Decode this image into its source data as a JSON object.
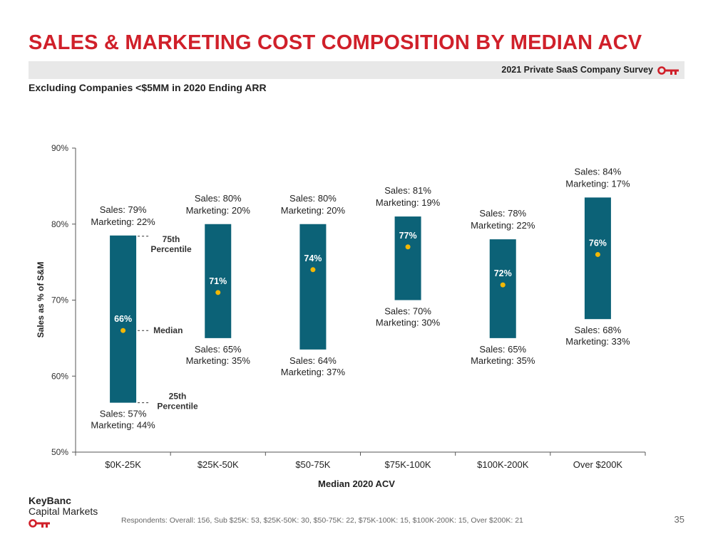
{
  "header": {
    "title": "SALES & MARKETING COST COMPOSITION BY MEDIAN ACV",
    "survey": "2021 Private SaaS Company Survey",
    "subtitle": "Excluding Companies <$5MM in 2020 Ending ARR"
  },
  "footer": {
    "logo_line1": "KeyBanc",
    "logo_line2": "Capital Markets",
    "footnote": "Respondents: Overall: 156, Sub $25K: 53, $25K-50K: 30, $50-75K: 22, $75K-100K: 15, $100K-200K: 15, Over $200K: 21",
    "page_number": "35"
  },
  "colors": {
    "title": "#d0202a",
    "bar": "#0c6277",
    "median_dot": "#f2b705",
    "axis": "#555555"
  },
  "chart_data": {
    "type": "floating-bar",
    "xlabel": "Median 2020 ACV",
    "ylabel": "Sales as % of S&M",
    "ylim": [
      50,
      90
    ],
    "yticks": [
      50,
      60,
      70,
      80,
      90
    ],
    "ytick_labels": [
      "50%",
      "60%",
      "70%",
      "80%",
      "90%"
    ],
    "grid": false,
    "categories": [
      "$0K-25K",
      "$25K-50K",
      "$50-75K",
      "$75K-100K",
      "$100K-200K",
      "Over $200K"
    ],
    "p25": [
      56.5,
      65,
      63.5,
      70,
      65,
      67.5
    ],
    "p75": [
      78.5,
      80,
      80,
      81,
      78,
      83.5
    ],
    "median": [
      66,
      71,
      74,
      77,
      72,
      76
    ],
    "median_labels": [
      "66%",
      "71%",
      "74%",
      "77%",
      "72%",
      "76%"
    ],
    "top_labels": [
      [
        "Sales: 79%",
        "Marketing: 22%"
      ],
      [
        "Sales: 80%",
        "Marketing: 20%"
      ],
      [
        "Sales: 80%",
        "Marketing: 20%"
      ],
      [
        "Sales: 81%",
        "Marketing: 19%"
      ],
      [
        "Sales: 78%",
        "Marketing: 22%"
      ],
      [
        "Sales: 84%",
        "Marketing: 17%"
      ]
    ],
    "bottom_labels": [
      [
        "Sales: 57%",
        "Marketing: 44%"
      ],
      [
        "Sales: 65%",
        "Marketing: 35%"
      ],
      [
        "Sales: 64%",
        "Marketing: 37%"
      ],
      [
        "Sales: 70%",
        "Marketing: 30%"
      ],
      [
        "Sales: 65%",
        "Marketing: 35%"
      ],
      [
        "Sales: 68%",
        "Marketing: 33%"
      ]
    ],
    "annotations": {
      "p75": [
        "75th",
        "Percentile"
      ],
      "median": "Median",
      "p25": [
        "25th",
        "Percentile"
      ]
    }
  }
}
